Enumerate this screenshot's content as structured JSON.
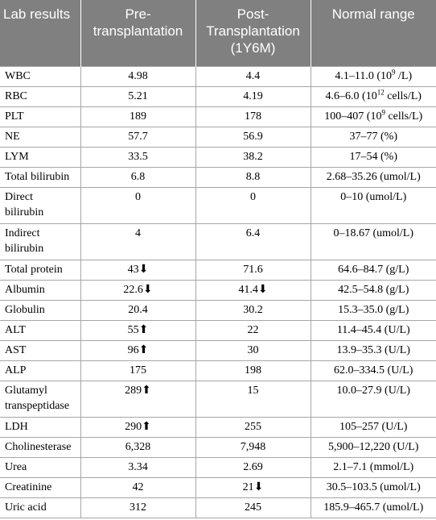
{
  "table": {
    "header": [
      "Lab results",
      "Pre-\ntransplantation",
      "Post-\nTransplantation\n(1Y6M)",
      "Normal range"
    ],
    "rows": [
      [
        "WBC",
        "4.98",
        "4.4",
        {
          "before": "4.1–11.0 (10",
          "sup": "9",
          "after": " /L)"
        }
      ],
      [
        "RBC",
        "5.21",
        "4.19",
        {
          "before": "4.6–6.0 (10",
          "sup": "12",
          "after": " cells/L)"
        }
      ],
      [
        "PLT",
        "189",
        "178",
        {
          "before": "100–407 (10",
          "sup": "9",
          "after": " cells/L)"
        }
      ],
      [
        "NE",
        "57.7",
        "56.9",
        "37–77 (%)"
      ],
      [
        "LYM",
        "33.5",
        "38.2",
        "17–54 (%)"
      ],
      [
        "Total bilirubin",
        "6.8",
        "8.8",
        "2.68–35.26 (umol/L)"
      ],
      [
        "Direct\nbilirubin",
        "0",
        "0",
        "0–10 (umol/L)"
      ],
      [
        "Indirect\nbilirubin",
        "4",
        "6.4",
        "0–18.67 (umol/L)"
      ],
      [
        "Total protein",
        "43⬇",
        "71.6",
        "64.6–84.7 (g/L)"
      ],
      [
        "Albumin",
        "22.6⬇",
        "41.4⬇",
        "42.5–54.8 (g/L)"
      ],
      [
        "Globulin",
        "20.4",
        "30.2",
        "15.3–35.0 (g/L)"
      ],
      [
        "ALT",
        "55⬆",
        "22",
        "11.4–45.4 (U/L)"
      ],
      [
        "AST",
        "96⬆",
        "30",
        "13.9–35.3 (U/L)"
      ],
      [
        "ALP",
        "175",
        "198",
        "62.0–334.5 (U/L)"
      ],
      [
        "Glutamyl\ntranspeptidase",
        "289⬆",
        "15",
        "10.0–27.9 (U/L)"
      ],
      [
        "LDH",
        "290⬆",
        "255",
        "105–257 (U/L)"
      ],
      [
        "Cholinesterase",
        "6,328",
        "7,948",
        "5,900–12,220 (U/L)"
      ],
      [
        "Urea",
        "3.34",
        "2.69",
        "2.1–7.1 (mmol/L)"
      ],
      [
        "Creatinine",
        "42",
        "21⬇",
        "30.5–103.5 (umol/L)"
      ],
      [
        "Uric acid",
        "312",
        "245",
        "185.9–465.7 (umol/L)"
      ]
    ]
  }
}
